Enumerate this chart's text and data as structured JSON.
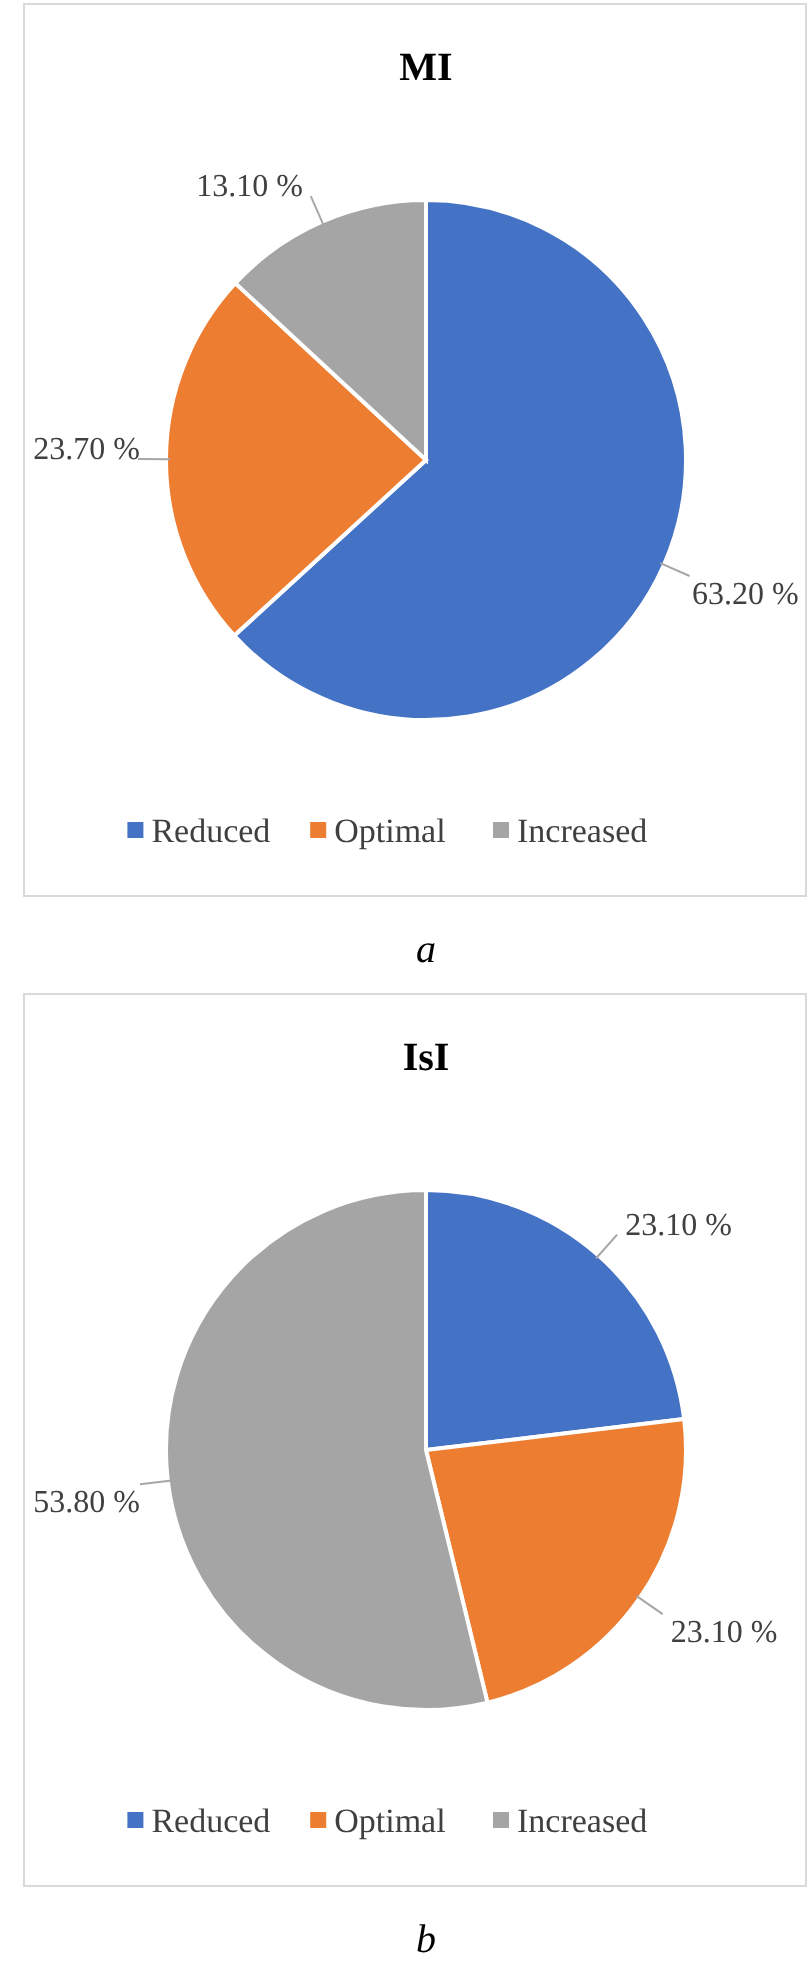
{
  "chart_data": [
    {
      "type": "pie",
      "title": "MI",
      "categories": [
        "Reduced",
        "Optimal",
        "Increased"
      ],
      "values": [
        63.2,
        23.7,
        13.1
      ],
      "colors": [
        "#4472c4",
        "#ed7d31",
        "#a5a5a5"
      ],
      "value_labels": [
        "63.20 %",
        "23.70 %",
        "13.10 %"
      ],
      "legend": "bottom",
      "annotations": [
        "a"
      ]
    },
    {
      "type": "pie",
      "title": "IsI",
      "categories": [
        "Reduced",
        "Optimal",
        "Increased"
      ],
      "values": [
        23.1,
        23.1,
        53.8
      ],
      "colors": [
        "#4472c4",
        "#ed7d31",
        "#a5a5a5"
      ],
      "value_labels": [
        "23.10 %",
        "23.10 %",
        "53.80 %"
      ],
      "legend": "bottom",
      "annotations": [
        "b"
      ]
    }
  ]
}
